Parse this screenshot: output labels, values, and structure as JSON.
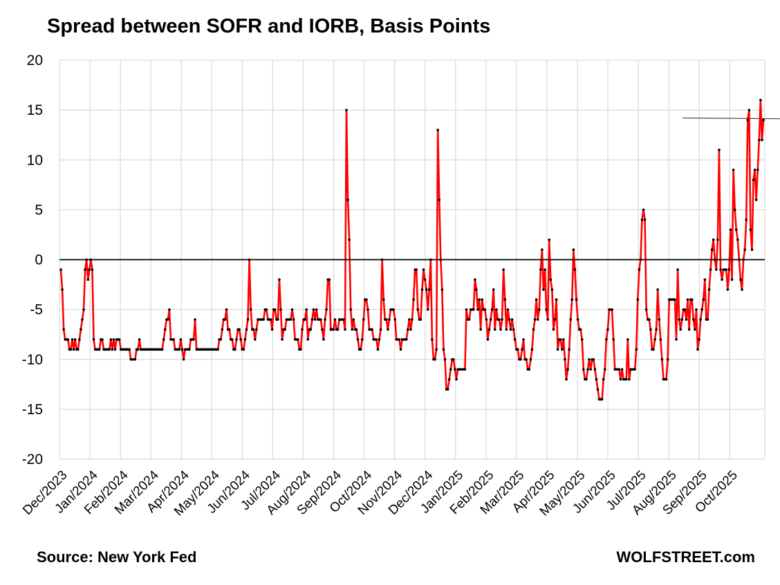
{
  "chart_data": {
    "type": "line",
    "title": "Spread between SOFR and IORB, Basis Points",
    "xlabel": "",
    "ylabel": "",
    "ylim": [
      -20,
      20
    ],
    "yticks": [
      "20",
      "15",
      "10",
      "5",
      "0",
      "-5",
      "-10",
      "-15",
      "-20"
    ],
    "grid": true,
    "legend": "none",
    "source": "Source: New York Fed",
    "credit": "WOLFSTREET.com",
    "x_tick_labels": [
      "Dec/2023",
      "Jan/2024",
      "Feb/2024",
      "Mar/2024",
      "Apr/2024",
      "May/2024",
      "Jun/2024",
      "Jul/2024",
      "Aug/2024",
      "Sep/2024",
      "Oct/2024",
      "Nov/2024",
      "Dec/2024",
      "Jan/2025",
      "Feb/2025",
      "Mar/2025",
      "Apr/2025",
      "May/2025",
      "Jun/2025",
      "Jul/2025",
      "Aug/2025",
      "Sep/2025",
      "Oct/2025"
    ],
    "line_color": "#ff0000",
    "marker_color": "#000000",
    "zero_line_color": "#000000",
    "reference_level": 14.2,
    "series": [
      {
        "name": "SOFR minus IORB",
        "values": [
          -1,
          -3,
          -7,
          -8,
          -8,
          -8,
          -9,
          -9,
          -8,
          -9,
          -8,
          -9,
          -9,
          -8,
          -7,
          -6,
          -5,
          -1,
          0,
          -2,
          -1,
          0,
          -1,
          -8,
          -9,
          -9,
          -9,
          -9,
          -8,
          -8,
          -9,
          -9,
          -9,
          -9,
          -9,
          -8,
          -9,
          -8,
          -9,
          -8,
          -8,
          -8,
          -9,
          -9,
          -9,
          -9,
          -9,
          -9,
          -9,
          -10,
          -10,
          -10,
          -10,
          -9,
          -9,
          -8,
          -9,
          -9,
          -9,
          -9,
          -9,
          -9,
          -9,
          -9,
          -9,
          -9,
          -9,
          -9,
          -9,
          -9,
          -9,
          -9,
          -8,
          -7,
          -6,
          -6,
          -5,
          -8,
          -8,
          -8,
          -9,
          -9,
          -9,
          -9,
          -8,
          -9,
          -10,
          -9,
          -9,
          -9,
          -9,
          -8,
          -8,
          -8,
          -6,
          -9,
          -9,
          -9,
          -9,
          -9,
          -9,
          -9,
          -9,
          -9,
          -9,
          -9,
          -9,
          -9,
          -9,
          -9,
          -9,
          -8,
          -8,
          -7,
          -6,
          -6,
          -5,
          -7,
          -7,
          -8,
          -8,
          -9,
          -9,
          -8,
          -7,
          -7,
          -8,
          -9,
          -9,
          -8,
          -7,
          -6,
          0,
          -5,
          -7,
          -7,
          -8,
          -7,
          -6,
          -6,
          -6,
          -6,
          -6,
          -5,
          -5,
          -6,
          -6,
          -6,
          -7,
          -5,
          -5,
          -6,
          -6,
          -2,
          -5,
          -8,
          -7,
          -7,
          -6,
          -6,
          -6,
          -6,
          -5,
          -6,
          -8,
          -8,
          -8,
          -9,
          -9,
          -7,
          -6,
          -6,
          -5,
          -8,
          -7,
          -7,
          -6,
          -5,
          -6,
          -5,
          -6,
          -6,
          -6,
          -7,
          -8,
          -6,
          -5,
          -2,
          -2,
          -7,
          -7,
          -7,
          -6,
          -7,
          -7,
          -6,
          -6,
          -6,
          -6,
          -7,
          15,
          6,
          2,
          -5,
          -7,
          -6,
          -7,
          -7,
          -8,
          -9,
          -9,
          -8,
          -6,
          -4,
          -4,
          -5,
          -7,
          -7,
          -7,
          -8,
          -8,
          -8,
          -9,
          -8,
          -7,
          0,
          -4,
          -6,
          -6,
          -7,
          -6,
          -5,
          -5,
          -5,
          -6,
          -8,
          -8,
          -8,
          -9,
          -8,
          -8,
          -8,
          -8,
          -7,
          -6,
          -7,
          -6,
          -4,
          -1,
          -1,
          -5,
          -6,
          -6,
          -3,
          -1,
          -2,
          -3,
          -5,
          -3,
          0,
          -8,
          -10,
          -10,
          -9,
          13,
          6,
          0,
          -3,
          -9,
          -10,
          -13,
          -13,
          -12,
          -11,
          -10,
          -10,
          -11,
          -12,
          -11,
          -11,
          -11,
          -11,
          -11,
          -11,
          -5,
          -6,
          -6,
          -5,
          -5,
          -5,
          -2,
          -3,
          -5,
          -4,
          -7,
          -4,
          -5,
          -5,
          -6,
          -8,
          -7,
          -6,
          -5,
          -3,
          -7,
          -5,
          -6,
          -6,
          -7,
          -6,
          -1,
          -4,
          -7,
          -5,
          -6,
          -7,
          -6,
          -7,
          -8,
          -9,
          -9,
          -10,
          -10,
          -9,
          -8,
          -10,
          -10,
          -11,
          -11,
          -10,
          -9,
          -7,
          -6,
          -4,
          -6,
          -5,
          -1,
          1,
          -3,
          -1,
          -5,
          -6,
          2,
          -2,
          -3,
          -7,
          -6,
          -4,
          -9,
          -8,
          -8,
          -9,
          -8,
          -10,
          -12,
          -11,
          -9,
          -6,
          -4,
          1,
          -1,
          -4,
          -6,
          -7,
          -7,
          -8,
          -11,
          -12,
          -12,
          -11,
          -10,
          -11,
          -10,
          -10,
          -11,
          -12,
          -13,
          -14,
          -14,
          -14,
          -12,
          -11,
          -8,
          -7,
          -5,
          -5,
          -5,
          -8,
          -11,
          -11,
          -11,
          -11,
          -12,
          -11,
          -12,
          -12,
          -12,
          -8,
          -12,
          -11,
          -11,
          -11,
          -11,
          -9,
          -4,
          -1,
          0,
          4,
          5,
          4,
          -5,
          -6,
          -6,
          -7,
          -9,
          -9,
          -8,
          -7,
          -3,
          -6,
          -8,
          -10,
          -12,
          -12,
          -12,
          -10,
          -4,
          -4,
          -4,
          -4,
          -4,
          -8,
          -1,
          -6,
          -7,
          -6,
          -5,
          -5,
          -6,
          -4,
          -7,
          -4,
          -4,
          -6,
          -7,
          -5,
          -9,
          -8,
          -6,
          -5,
          -4,
          -2,
          -6,
          -6,
          -3,
          -1,
          1,
          2,
          0,
          -1,
          2,
          11,
          -1,
          -2,
          -1,
          -1,
          -1,
          -3,
          -1,
          3,
          -2,
          9,
          5,
          3,
          2,
          0,
          -2,
          -3,
          0,
          1,
          4,
          14,
          15,
          3,
          1,
          8,
          9,
          6,
          9,
          12,
          16,
          12,
          14
        ]
      }
    ]
  }
}
